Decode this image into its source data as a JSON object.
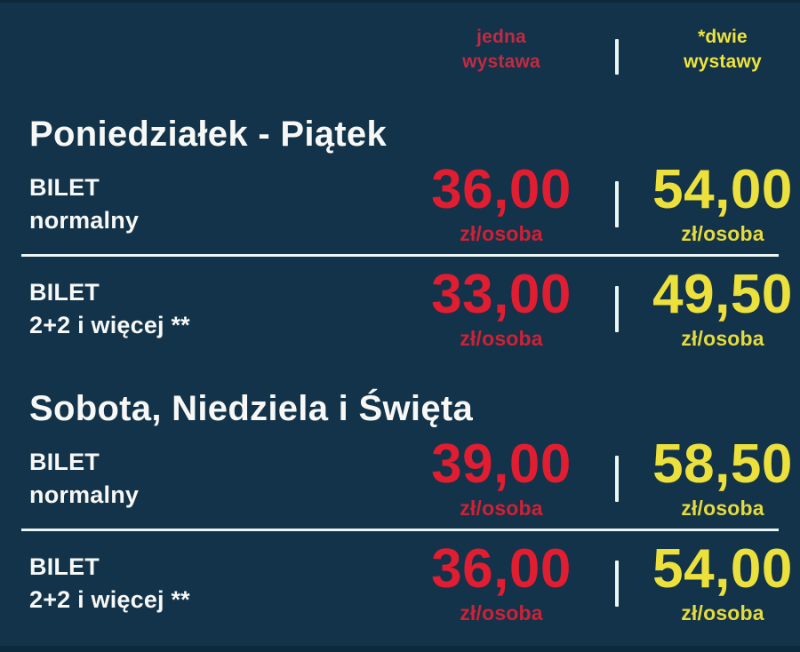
{
  "poster": {
    "type": "price-list",
    "currency_unit": "zł/osoba",
    "colors": {
      "background": "#123349",
      "text_white": "#f7f8f6",
      "header_red": "#c22a42",
      "price_red": "#e01d31",
      "unit_red": "#ce2136",
      "header_yellow": "#efe33c",
      "price_yellow": "#ece13c",
      "unit_yellow": "#e5da3e",
      "divider": "#e9f6f3"
    },
    "columns": {
      "one_exhibition": {
        "line1": "jedna",
        "line2": "wystawa"
      },
      "two_exhibitions": {
        "line1": "*dwie",
        "line2": "wystawy"
      }
    },
    "sections": [
      {
        "title": "Poniedziałek - Piątek",
        "rows": [
          {
            "label_line1": "BILET",
            "label_line2": "normalny",
            "price_one": "36,00",
            "unit_one": "zł/osoba",
            "price_two": "54,00",
            "unit_two": "zł/osoba"
          },
          {
            "label_line1": "BILET",
            "label_line2": "2+2 i więcej **",
            "price_one": "33,00",
            "unit_one": "zł/osoba",
            "price_two": "49,50",
            "unit_two": "zł/osoba"
          }
        ]
      },
      {
        "title": "Sobota, Niedziela i Święta",
        "rows": [
          {
            "label_line1": "BILET",
            "label_line2": "normalny",
            "price_one": "39,00",
            "unit_one": "zł/osoba",
            "price_two": "58,50",
            "unit_two": "zł/osoba"
          },
          {
            "label_line1": "BILET",
            "label_line2": "2+2 i więcej **",
            "price_one": "36,00",
            "unit_one": "zł/osoba",
            "price_two": "54,00",
            "unit_two": "zł/osoba"
          }
        ]
      }
    ]
  }
}
